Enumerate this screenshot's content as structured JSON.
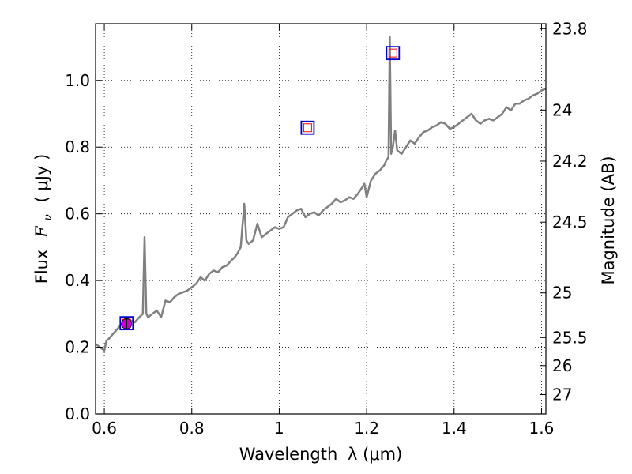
{
  "chart_data": {
    "type": "line",
    "title": "",
    "xlabel": "Wavelength",
    "xlabel_math": "λ (μm)",
    "ylabel": "Flux",
    "ylabel_math": "F",
    "ylabel_sub": "ν",
    "ylabel_units": "( μJy )",
    "y2label": "Magnitude (AB)",
    "xlim": [
      0.58,
      1.61
    ],
    "ylim": [
      0.0,
      1.17
    ],
    "grid": true,
    "x_ticks": [
      {
        "value": 0.6,
        "label": "0.6"
      },
      {
        "value": 0.8,
        "label": "0.8"
      },
      {
        "value": 1.0,
        "label": "1"
      },
      {
        "value": 1.2,
        "label": "1.2"
      },
      {
        "value": 1.4,
        "label": "1.4"
      },
      {
        "value": 1.6,
        "label": "1.6"
      }
    ],
    "y_ticks": [
      {
        "value": 0.0,
        "label": "0.0"
      },
      {
        "value": 0.2,
        "label": "0.2"
      },
      {
        "value": 0.4,
        "label": "0.4"
      },
      {
        "value": 0.6,
        "label": "0.6"
      },
      {
        "value": 0.8,
        "label": "0.8"
      },
      {
        "value": 1.0,
        "label": "1.0"
      }
    ],
    "y2_ticks": [
      {
        "flux": 1.155,
        "label": "23.8"
      },
      {
        "flux": 0.911,
        "label": "24"
      },
      {
        "flux": 0.758,
        "label": "24.2"
      },
      {
        "flux": 0.575,
        "label": "24.5"
      },
      {
        "flux": 0.363,
        "label": "25"
      },
      {
        "flux": 0.229,
        "label": "25.5"
      },
      {
        "flux": 0.145,
        "label": "26"
      },
      {
        "flux": 0.058,
        "label": "27"
      }
    ],
    "series": [
      {
        "kind": "spectrum",
        "color": "#808080",
        "x": [
          0.58,
          0.59,
          0.6,
          0.605,
          0.61,
          0.62,
          0.63,
          0.64,
          0.65,
          0.66,
          0.67,
          0.68,
          0.688,
          0.692,
          0.696,
          0.7,
          0.71,
          0.72,
          0.73,
          0.74,
          0.75,
          0.76,
          0.77,
          0.78,
          0.79,
          0.8,
          0.81,
          0.82,
          0.83,
          0.84,
          0.85,
          0.86,
          0.87,
          0.88,
          0.89,
          0.898,
          0.904,
          0.908,
          0.912,
          0.92,
          0.925,
          0.93,
          0.94,
          0.95,
          0.96,
          0.97,
          0.98,
          0.99,
          1.0,
          1.01,
          1.02,
          1.03,
          1.04,
          1.05,
          1.06,
          1.07,
          1.08,
          1.09,
          1.1,
          1.11,
          1.12,
          1.13,
          1.14,
          1.15,
          1.16,
          1.17,
          1.18,
          1.19,
          1.195,
          1.2,
          1.21,
          1.22,
          1.23,
          1.24,
          1.245,
          1.25,
          1.253,
          1.256,
          1.26,
          1.265,
          1.27,
          1.28,
          1.29,
          1.3,
          1.31,
          1.32,
          1.33,
          1.34,
          1.35,
          1.36,
          1.37,
          1.38,
          1.39,
          1.4,
          1.41,
          1.42,
          1.43,
          1.44,
          1.45,
          1.46,
          1.47,
          1.48,
          1.49,
          1.5,
          1.51,
          1.52,
          1.53,
          1.54,
          1.55,
          1.56,
          1.57,
          1.58,
          1.59,
          1.6,
          1.61
        ],
        "y": [
          0.21,
          0.2,
          0.19,
          0.22,
          0.225,
          0.24,
          0.255,
          0.27,
          0.265,
          0.28,
          0.275,
          0.29,
          0.3,
          0.53,
          0.3,
          0.29,
          0.3,
          0.31,
          0.29,
          0.34,
          0.335,
          0.35,
          0.36,
          0.365,
          0.37,
          0.38,
          0.39,
          0.41,
          0.4,
          0.42,
          0.43,
          0.425,
          0.44,
          0.445,
          0.46,
          0.47,
          0.48,
          0.49,
          0.5,
          0.63,
          0.52,
          0.51,
          0.52,
          0.57,
          0.53,
          0.54,
          0.55,
          0.56,
          0.555,
          0.56,
          0.59,
          0.6,
          0.61,
          0.615,
          0.59,
          0.6,
          0.605,
          0.595,
          0.61,
          0.62,
          0.63,
          0.645,
          0.635,
          0.64,
          0.65,
          0.645,
          0.66,
          0.68,
          0.69,
          0.65,
          0.7,
          0.72,
          0.73,
          0.745,
          0.76,
          0.77,
          1.13,
          0.78,
          0.8,
          0.85,
          0.79,
          0.78,
          0.8,
          0.82,
          0.81,
          0.83,
          0.845,
          0.85,
          0.86,
          0.865,
          0.875,
          0.87,
          0.855,
          0.86,
          0.87,
          0.88,
          0.89,
          0.9,
          0.88,
          0.87,
          0.88,
          0.885,
          0.88,
          0.89,
          0.9,
          0.92,
          0.91,
          0.93,
          0.93,
          0.94,
          0.945,
          0.955,
          0.96,
          0.97,
          0.975
        ]
      },
      {
        "kind": "photometry-open-squares",
        "color": "#0000cc",
        "inner_color": "#ff0000",
        "x": [
          0.651,
          1.065,
          1.26
        ],
        "y": [
          0.272,
          0.858,
          1.082
        ]
      },
      {
        "kind": "photometry-filled-circle",
        "color": "#cc00cc",
        "x": [
          0.651
        ],
        "y": [
          0.27
        ],
        "yerr": [
          0.015
        ]
      }
    ]
  }
}
